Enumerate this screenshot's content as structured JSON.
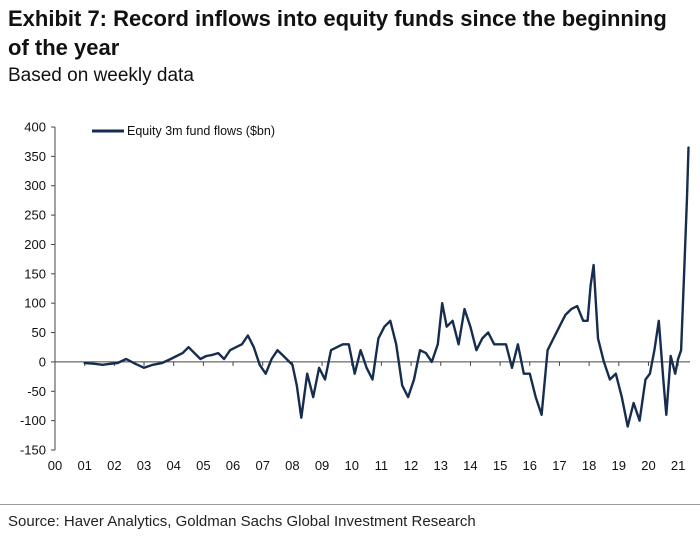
{
  "title": "Exhibit 7: Record inflows into equity funds since the beginning of the year",
  "subtitle": "Based on weekly data",
  "source": "Source: Haver Analytics, Goldman Sachs Global Investment Research",
  "chart_data": {
    "type": "line",
    "title": "Exhibit 7: Record inflows into equity funds since the beginning of the year",
    "subtitle": "Based on weekly data",
    "xlabel": "",
    "ylabel": "",
    "x_tick_labels": [
      "00",
      "01",
      "02",
      "03",
      "04",
      "05",
      "06",
      "07",
      "08",
      "09",
      "10",
      "11",
      "12",
      "13",
      "14",
      "15",
      "16",
      "17",
      "18",
      "19",
      "20",
      "21"
    ],
    "y_tick_labels": [
      "400",
      "350",
      "300",
      "250",
      "200",
      "150",
      "100",
      "50",
      "0",
      "-50",
      "-100",
      "-150"
    ],
    "xlim": [
      2000,
      2021.4
    ],
    "ylim": [
      -150,
      400
    ],
    "grid": false,
    "legend": "top-left",
    "series": [
      {
        "name": "Equity 3m fund flows ($bn)",
        "color": "#162d4f",
        "x": [
          2001.0,
          2001.3,
          2001.6,
          2001.9,
          2002.1,
          2002.4,
          2002.7,
          2003.0,
          2003.3,
          2003.6,
          2003.9,
          2004.1,
          2004.3,
          2004.5,
          2004.7,
          2004.9,
          2005.1,
          2005.3,
          2005.5,
          2005.7,
          2005.9,
          2006.1,
          2006.3,
          2006.5,
          2006.7,
          2006.9,
          2007.1,
          2007.3,
          2007.5,
          2007.7,
          2007.9,
          2008.0,
          2008.15,
          2008.3,
          2008.5,
          2008.7,
          2008.9,
          2009.1,
          2009.3,
          2009.5,
          2009.7,
          2009.9,
          2010.1,
          2010.3,
          2010.5,
          2010.7,
          2010.9,
          2011.1,
          2011.3,
          2011.5,
          2011.7,
          2011.9,
          2012.1,
          2012.3,
          2012.5,
          2012.7,
          2012.9,
          2013.05,
          2013.2,
          2013.4,
          2013.6,
          2013.8,
          2014.0,
          2014.2,
          2014.4,
          2014.6,
          2014.8,
          2015.0,
          2015.2,
          2015.4,
          2015.6,
          2015.8,
          2016.0,
          2016.2,
          2016.4,
          2016.6,
          2016.8,
          2017.0,
          2017.2,
          2017.4,
          2017.6,
          2017.8,
          2017.95,
          2018.05,
          2018.15,
          2018.3,
          2018.5,
          2018.7,
          2018.9,
          2019.1,
          2019.3,
          2019.5,
          2019.7,
          2019.9,
          2020.05,
          2020.2,
          2020.35,
          2020.5,
          2020.6,
          2020.75,
          2020.9,
          2021.0,
          2021.1,
          2021.2,
          2021.3,
          2021.35
        ],
        "values": [
          -2,
          -3,
          -5,
          -3,
          -2,
          5,
          -3,
          -10,
          -5,
          -2,
          5,
          10,
          15,
          25,
          15,
          5,
          10,
          12,
          15,
          5,
          20,
          25,
          30,
          45,
          25,
          -5,
          -20,
          5,
          20,
          10,
          0,
          -5,
          -40,
          -95,
          -20,
          -60,
          -10,
          -30,
          20,
          25,
          30,
          30,
          -20,
          20,
          -10,
          -30,
          40,
          60,
          70,
          30,
          -40,
          -60,
          -30,
          20,
          15,
          0,
          30,
          100,
          60,
          70,
          30,
          90,
          60,
          20,
          40,
          50,
          30,
          30,
          30,
          -10,
          30,
          -20,
          -20,
          -60,
          -90,
          20,
          40,
          60,
          80,
          90,
          95,
          70,
          70,
          130,
          165,
          40,
          0,
          -30,
          -20,
          -60,
          -110,
          -70,
          -100,
          -30,
          -20,
          20,
          70,
          -30,
          -90,
          10,
          -20,
          5,
          20,
          150,
          280,
          365
        ]
      }
    ]
  }
}
